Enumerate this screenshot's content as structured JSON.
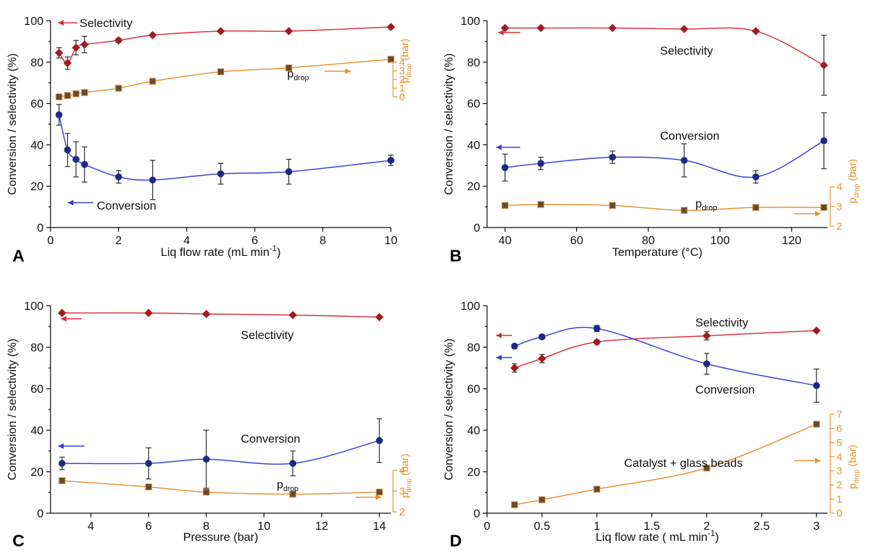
{
  "colors": {
    "selectivity": "#d62c3c",
    "selectivity_marker": "#a11c22",
    "conversion": "#3a3ad6",
    "conversion_marker": "#1c2a86",
    "pdrop": "#e8902c",
    "pdrop_marker": "#6b4a2a"
  },
  "chart_data": [
    {
      "type": "line",
      "panel": "A",
      "xlabel": "Liq flow rate (mL min",
      "xlabel_sup": "-1",
      "xlabel_end": ")",
      "ylabel": "Conversion / selectivity (%)",
      "xlim": [
        0,
        10
      ],
      "ylim": [
        0,
        100
      ],
      "xticks": [
        0,
        2,
        4,
        6,
        8,
        10
      ],
      "yticks": [
        0,
        20,
        40,
        60,
        80,
        100
      ],
      "right_axis": {
        "label_main": "p",
        "label_sub": "drop",
        "label_unit": " (bar)",
        "ticks": [
          0,
          1,
          2,
          3,
          4
        ],
        "range": [
          0,
          4
        ]
      },
      "series": [
        {
          "name": "Selectivity",
          "axis": "left",
          "x": [
            0.25,
            0.5,
            0.75,
            1,
            2,
            3,
            5,
            7,
            10
          ],
          "y": [
            84.5,
            79.5,
            87,
            88.5,
            90.5,
            93,
            95,
            95,
            97
          ],
          "err": [
            2.5,
            3,
            3.5,
            4,
            1,
            0.5,
            0.5,
            0.5,
            0.5
          ]
        },
        {
          "name": "Conversion",
          "axis": "left",
          "x": [
            0.25,
            0.5,
            0.75,
            1,
            2,
            3,
            5,
            7,
            10
          ],
          "y": [
            54.5,
            37.5,
            33,
            30.5,
            24.5,
            23,
            26,
            27,
            32.5
          ],
          "err": [
            5,
            8,
            8.5,
            8.5,
            3,
            9.5,
            5,
            6,
            2.5
          ]
        },
        {
          "name": "p_drop",
          "axis": "right",
          "x": [
            0.25,
            0.5,
            0.75,
            1,
            2,
            3,
            5,
            7,
            10
          ],
          "y": [
            0.0,
            0.15,
            0.35,
            0.5,
            1.0,
            1.8,
            2.9,
            3.35,
            4.35
          ]
        }
      ],
      "annotations": [
        {
          "text": "Selectivity",
          "arrow": "left",
          "color": "selectivity"
        },
        {
          "text": "Conversion",
          "arrow": "left",
          "color": "conversion"
        },
        {
          "text_main": "p",
          "text_sub": "drop",
          "arrow": "right",
          "color": "pdrop"
        }
      ]
    },
    {
      "type": "line",
      "panel": "B",
      "xlabel": "Temperature (°C)",
      "ylabel": "Conversion / selectivity (%)",
      "xlim": [
        35,
        130
      ],
      "ylim": [
        0,
        100
      ],
      "xticks": [
        40,
        60,
        80,
        100,
        120
      ],
      "yticks": [
        0,
        20,
        40,
        60,
        80,
        100
      ],
      "right_axis": {
        "label_main": "p",
        "label_sub": "drop",
        "label_unit": " (bar)",
        "ticks": [
          2,
          3,
          4
        ],
        "range": [
          2,
          4
        ]
      },
      "series": [
        {
          "name": "Selectivity",
          "axis": "left",
          "x": [
            40,
            50,
            70,
            90,
            110,
            129
          ],
          "y": [
            96.5,
            96.5,
            96.5,
            96,
            95,
            78.5
          ],
          "err": [
            0.5,
            0.5,
            0.5,
            0.5,
            0.5,
            14.5
          ]
        },
        {
          "name": "Conversion",
          "axis": "left",
          "x": [
            40,
            50,
            70,
            90,
            110,
            129
          ],
          "y": [
            29,
            31,
            34,
            32.5,
            24.5,
            42
          ],
          "err": [
            6.5,
            3,
            3,
            8,
            3,
            13.5
          ]
        },
        {
          "name": "p_drop",
          "axis": "right",
          "x": [
            40,
            50,
            70,
            90,
            110,
            129
          ],
          "y": [
            3.05,
            3.1,
            3.05,
            2.8,
            2.95,
            2.95
          ]
        }
      ],
      "annotations": [
        {
          "text": "Selectivity",
          "arrow": "left",
          "color": "selectivity"
        },
        {
          "text": "Conversion",
          "arrow": "left",
          "color": "conversion"
        },
        {
          "text_main": "p",
          "text_sub": "drop",
          "arrow": "right",
          "color": "pdrop"
        }
      ]
    },
    {
      "type": "line",
      "panel": "C",
      "xlabel": "Pressure (bar)",
      "ylabel": "Conversion / selectivity (%)",
      "xlim": [
        2.6,
        14.4
      ],
      "ylim": [
        0,
        100
      ],
      "xticks": [
        4,
        6,
        8,
        10,
        12,
        14
      ],
      "yticks": [
        0,
        20,
        40,
        60,
        80,
        100
      ],
      "right_axis": {
        "label_main": "p",
        "label_sub": "drop",
        "label_unit": " (bar)",
        "ticks": [
          2,
          3,
          4
        ],
        "range": [
          2,
          4
        ]
      },
      "series": [
        {
          "name": "Selectivity",
          "axis": "left",
          "x": [
            3,
            6,
            8,
            11,
            14
          ],
          "y": [
            96.5,
            96.5,
            96,
            95.5,
            94.5
          ],
          "err": [
            0.5,
            0.5,
            0.5,
            0.5,
            0.5
          ]
        },
        {
          "name": "Conversion",
          "axis": "left",
          "x": [
            3,
            6,
            8,
            11,
            14
          ],
          "y": [
            24,
            24,
            26,
            24,
            35
          ],
          "err": [
            3,
            7.5,
            14,
            6,
            10.5
          ]
        },
        {
          "name": "p_drop",
          "axis": "right",
          "x": [
            3,
            6,
            8,
            11,
            14
          ],
          "y": [
            3.5,
            3.2,
            2.95,
            2.85,
            2.95
          ]
        }
      ],
      "annotations": [
        {
          "text": "Selectivity",
          "arrow": "left",
          "color": "selectivity"
        },
        {
          "text": "Conversion",
          "arrow": "left",
          "color": "conversion"
        },
        {
          "text_main": "p",
          "text_sub": "drop",
          "arrow": "right",
          "color": "pdrop"
        }
      ]
    },
    {
      "type": "line",
      "panel": "D",
      "xlabel": "Liq flow rate ( mL min",
      "xlabel_sup": "-1",
      "xlabel_end": ")",
      "ylabel": "Conversion / selectivity (%)",
      "xlim": [
        0,
        3.1
      ],
      "ylim": [
        0,
        100
      ],
      "xticks": [
        0,
        0.5,
        1,
        1.5,
        2,
        2.5,
        3
      ],
      "yticks": [
        0,
        20,
        40,
        60,
        80,
        100
      ],
      "right_axis": {
        "label_main": "p",
        "label_sub": "drop",
        "label_unit": " (bar)",
        "ticks": [
          0,
          1,
          2,
          3,
          4,
          5,
          6,
          7
        ],
        "range": [
          0,
          7
        ]
      },
      "series": [
        {
          "name": "Selectivity",
          "axis": "left",
          "x": [
            0.25,
            0.5,
            1,
            2,
            3
          ],
          "y": [
            70,
            74.5,
            82.5,
            85.5,
            88
          ],
          "err": [
            2,
            2,
            1,
            2,
            0.5
          ]
        },
        {
          "name": "Conversion",
          "axis": "left",
          "x": [
            0.25,
            0.5,
            1,
            2,
            3
          ],
          "y": [
            80.5,
            85,
            89,
            72,
            61.5
          ],
          "err": [
            1,
            1,
            1.5,
            5,
            8
          ]
        },
        {
          "name": "p_drop",
          "axis": "right",
          "x": [
            0.25,
            0.5,
            1,
            2,
            3
          ],
          "y": [
            0.6,
            0.95,
            1.7,
            3.2,
            6.3
          ]
        }
      ],
      "annotations": [
        {
          "text": "Selectivity",
          "arrow": "left",
          "color": "selectivity"
        },
        {
          "text": "Conversion",
          "arrow": "left",
          "color": "conversion"
        },
        {
          "text_main": "p",
          "text_sub": "drop",
          "arrow": "right",
          "color": "pdrop"
        },
        {
          "text": "Catalyst + glass beads"
        }
      ]
    }
  ]
}
